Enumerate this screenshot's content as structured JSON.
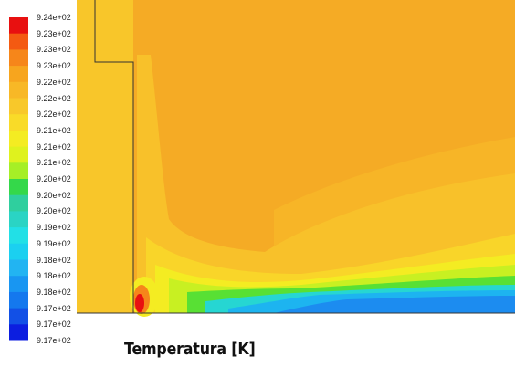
{
  "chart_data": {
    "type": "heatmap",
    "title": "Temperatura [K]",
    "colorbar": {
      "labels": [
        "9.24e+02",
        "9.23e+02",
        "9.23e+02",
        "9.23e+02",
        "9.22e+02",
        "9.22e+02",
        "9.22e+02",
        "9.21e+02",
        "9.21e+02",
        "9.21e+02",
        "9.20e+02",
        "9.20e+02",
        "9.20e+02",
        "9.19e+02",
        "9.19e+02",
        "9.18e+02",
        "9.18e+02",
        "9.18e+02",
        "9.17e+02",
        "9.17e+02",
        "9.17e+02"
      ],
      "colors": [
        "#e81010",
        "#f45a12",
        "#f6861a",
        "#f7a51e",
        "#f8b826",
        "#f8c82a",
        "#f9db28",
        "#f4ec22",
        "#dff21e",
        "#a6ef26",
        "#34d84a",
        "#2fcf9e",
        "#2ad4c4",
        "#22e0e6",
        "#1bd0f0",
        "#22b4f2",
        "#1896f2",
        "#1478ee",
        "#1250e6",
        "#0c1ee0"
      ]
    },
    "contour_regions": {
      "background": "#f5ab25",
      "solid_strip": "#f8c62a",
      "wall_line": "#333333"
    }
  }
}
